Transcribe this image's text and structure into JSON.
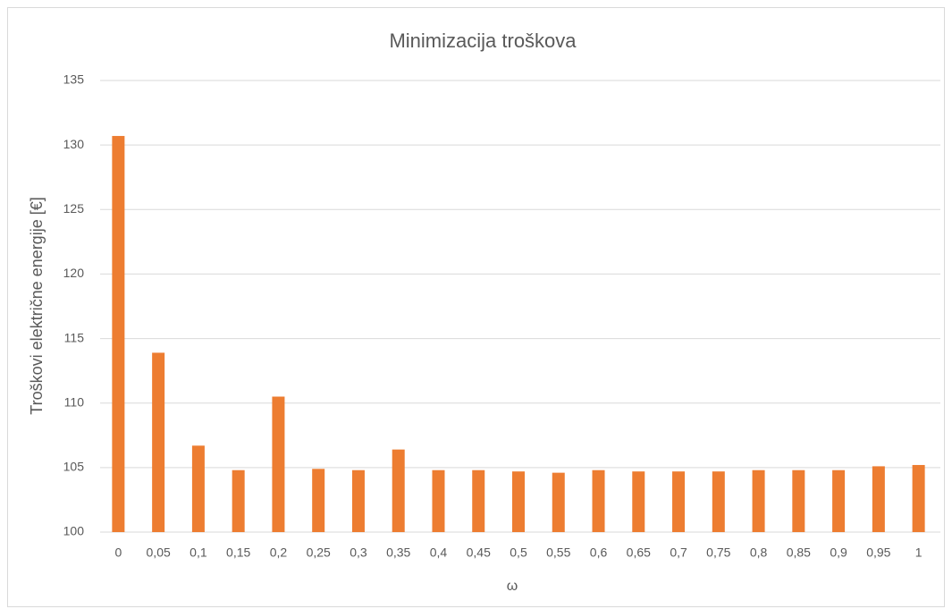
{
  "chart_data": {
    "type": "bar",
    "title": "Minimizacija troškova",
    "x_label": "ω",
    "y_label": "Troškovi električne energije [€]",
    "categories": [
      "0",
      "0,05",
      "0,1",
      "0,15",
      "0,2",
      "0,25",
      "0,3",
      "0,35",
      "0,4",
      "0,45",
      "0,5",
      "0,55",
      "0,6",
      "0,65",
      "0,7",
      "0,75",
      "0,8",
      "0,85",
      "0,9",
      "0,95",
      "1"
    ],
    "values": [
      130.7,
      113.9,
      106.7,
      104.8,
      110.5,
      104.9,
      104.8,
      106.4,
      104.8,
      104.8,
      104.7,
      104.6,
      104.8,
      104.7,
      104.7,
      104.7,
      104.8,
      104.8,
      104.8,
      105.1,
      105.2
    ],
    "color": "#ed7d31",
    "ylim": [
      100,
      135
    ],
    "yticks": [
      100,
      105,
      110,
      115,
      120,
      125,
      130,
      135
    ],
    "grid": true
  }
}
